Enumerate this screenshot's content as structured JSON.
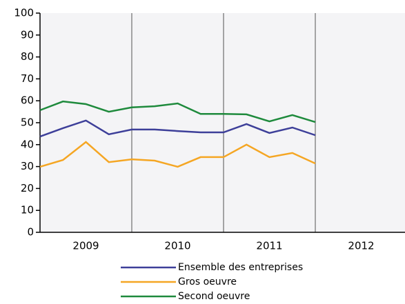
{
  "chart_data": {
    "type": "line",
    "x": [
      2008.5,
      2008.75,
      2009,
      2009.25,
      2009.5,
      2009.75,
      2010,
      2010.25,
      2010.5,
      2010.75,
      2011,
      2011.25,
      2011.5
    ],
    "series": [
      {
        "name": "Ensemble des entreprises",
        "color": "#3d3f99",
        "values": [
          43.7,
          47.5,
          51,
          44.7,
          46.9,
          46.9,
          46.2,
          45.6,
          45.6,
          49.4,
          45.3,
          47.8,
          44.3
        ]
      },
      {
        "name": "Gros oeuvre",
        "color": "#f5a623",
        "values": [
          29.9,
          33,
          41.2,
          32,
          33.3,
          32.7,
          29.9,
          34.3,
          34.3,
          40,
          34.3,
          36.2,
          31.4
        ]
      },
      {
        "name": "Second oeuvre",
        "color": "#1e8a3c",
        "values": [
          55.7,
          59.7,
          58.5,
          55,
          57,
          57.5,
          58.8,
          54,
          54,
          53.8,
          50.6,
          53.5,
          50.3
        ]
      }
    ],
    "xlim": [
      2008.5,
      2012.5
    ],
    "xticks": [
      2009,
      2010,
      2011,
      2012
    ],
    "year_separators": [
      2009.5,
      2010.5,
      2011.5
    ],
    "ylim": [
      0,
      100
    ],
    "yticks": [
      0,
      10,
      20,
      30,
      40,
      50,
      60,
      70,
      80,
      90,
      100
    ],
    "legend": "bottom"
  }
}
